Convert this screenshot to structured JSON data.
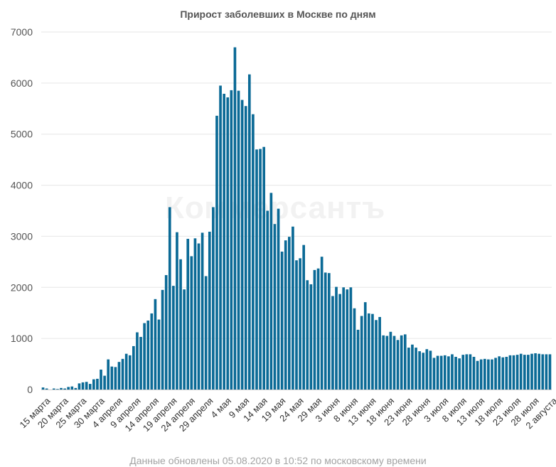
{
  "watermark": "Коммерсантъ",
  "footer": "Данные обновлены 05.08.2020 в 10:52 по московскому времени",
  "colors": {
    "bar": "#0b6a96",
    "grid": "#e6e6e6",
    "axis": "#cccccc"
  },
  "chart_data": {
    "type": "bar",
    "title": "Прирост заболевших в Москве по дням",
    "xlabel": "",
    "ylabel": "",
    "ylim": [
      0,
      7000
    ],
    "yticks": [
      0,
      1000,
      2000,
      3000,
      4000,
      5000,
      6000,
      7000
    ],
    "grid": true,
    "legend": "none",
    "xtick_labels": [
      "15 марта",
      "20 марта",
      "25 марта",
      "30 марта",
      "4 апреля",
      "9 апреля",
      "14 апреля",
      "19 апреля",
      "24 апреля",
      "29 апреля",
      "4 мая",
      "9 мая",
      "14 мая",
      "19 мая",
      "24 мая",
      "29 мая",
      "3 июня",
      "8 июня",
      "13 июня",
      "18 июня",
      "23 июня",
      "28 июня",
      "3 июля",
      "8 июля",
      "13 июля",
      "18 июля",
      "23 июля",
      "28 июля",
      "2 августа"
    ],
    "series": [
      {
        "values": [
          40,
          20,
          0,
          20,
          10,
          30,
          20,
          50,
          60,
          30,
          120,
          140,
          150,
          110,
          200,
          210,
          390,
          270,
          590,
          450,
          440,
          540,
          600,
          700,
          670,
          850,
          1120,
          1030,
          1300,
          1350,
          1490,
          1770,
          1370,
          1950,
          2240,
          3570,
          2030,
          3080,
          2550,
          1960,
          2950,
          2610,
          2960,
          2860,
          3070,
          2220,
          3090,
          3570,
          5360,
          5950,
          5790,
          5720,
          5860,
          6700,
          5850,
          5670,
          5550,
          6170,
          5390,
          4700,
          4710,
          4750,
          3500,
          3850,
          3240,
          3540,
          2700,
          2920,
          2990,
          3190,
          2530,
          2570,
          2830,
          2140,
          2060,
          2340,
          2370,
          2600,
          2290,
          2280,
          1830,
          2010,
          1870,
          2000,
          1960,
          2000,
          1590,
          1170,
          1440,
          1710,
          1490,
          1480,
          1360,
          1420,
          1060,
          1050,
          1130,
          1050,
          970,
          1060,
          1080,
          820,
          880,
          820,
          750,
          720,
          790,
          760,
          620,
          660,
          660,
          670,
          650,
          690,
          640,
          610,
          680,
          690,
          690,
          640,
          560,
          590,
          600,
          590,
          590,
          620,
          650,
          630,
          640,
          670,
          670,
          680,
          700,
          680,
          680,
          700,
          710,
          700,
          690,
          690,
          690
        ]
      }
    ]
  }
}
